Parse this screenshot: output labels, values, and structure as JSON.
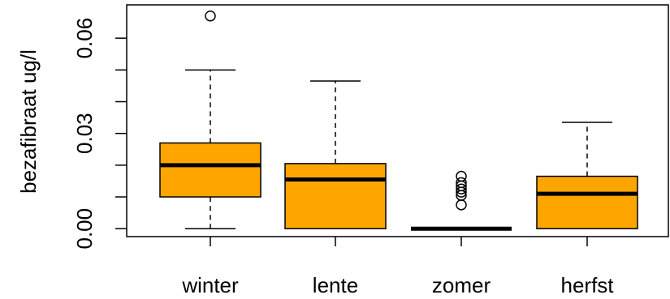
{
  "chart_data": {
    "type": "boxplot",
    "ylabel": "bezafibraat ug/l",
    "ylim": [
      -0.0025,
      0.0705
    ],
    "yticks": [
      0.0,
      0.03,
      0.06
    ],
    "ytick_labels": [
      "0.00",
      "0.03",
      "0.06"
    ],
    "ytick_minor": [
      0.0,
      0.01,
      0.02,
      0.03,
      0.04,
      0.05,
      0.06
    ],
    "fill_color": "#FFA500",
    "stroke_color": "#000000",
    "categories": [
      "winter",
      "lente",
      "zomer",
      "herfst"
    ],
    "boxes": [
      {
        "category": "winter",
        "whisker_low": 0.0,
        "q1": 0.01,
        "median": 0.02,
        "q3": 0.027,
        "whisker_high": 0.05,
        "outliers": [
          0.067
        ]
      },
      {
        "category": "lente",
        "whisker_low": 0.0,
        "q1": 0.0,
        "median": 0.0155,
        "q3": 0.0205,
        "whisker_high": 0.0465,
        "outliers": []
      },
      {
        "category": "zomer",
        "whisker_low": 0.0,
        "q1": 0.0,
        "median": 0.0,
        "q3": 0.0,
        "whisker_high": 0.0,
        "outliers": [
          0.0075,
          0.0105,
          0.0115,
          0.0125,
          0.0135,
          0.0145,
          0.0165
        ]
      },
      {
        "category": "herfst",
        "whisker_low": 0.0,
        "q1": 0.0,
        "median": 0.011,
        "q3": 0.0165,
        "whisker_high": 0.0335,
        "outliers": []
      }
    ]
  }
}
